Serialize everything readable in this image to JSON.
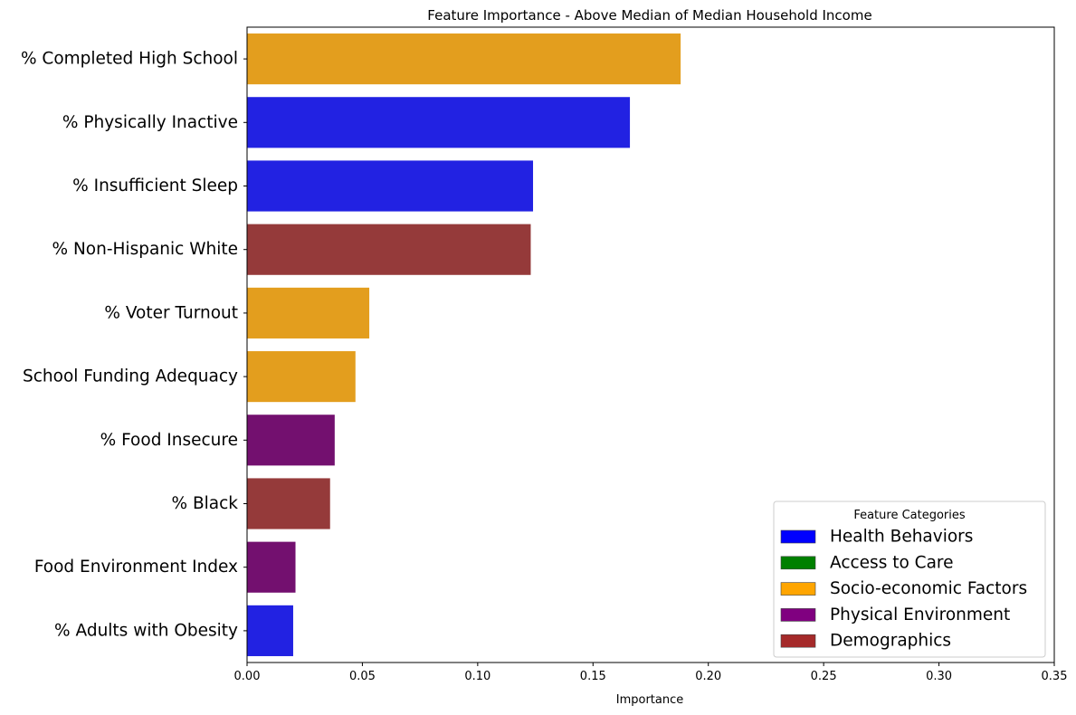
{
  "chart_data": {
    "type": "bar",
    "orientation": "horizontal",
    "title": "Feature Importance -  Above Median of Median Household Income",
    "xlabel": "Importance",
    "ylabel": "",
    "xlim": [
      0,
      0.35
    ],
    "xticks": [
      "0.00",
      "0.05",
      "0.10",
      "0.15",
      "0.20",
      "0.25",
      "0.30",
      "0.35"
    ],
    "grid": false,
    "categories": [
      "% Completed High School",
      "% Physically Inactive",
      "% Insufficient Sleep",
      "% Non-Hispanic White",
      "% Voter Turnout",
      "School Funding Adequacy",
      "% Food Insecure",
      "% Black",
      "Food Environment Index",
      "% Adults with Obesity"
    ],
    "values": [
      0.188,
      0.166,
      0.124,
      0.123,
      0.053,
      0.047,
      0.038,
      0.036,
      0.021,
      0.02
    ],
    "bar_categories": [
      "Socio-economic Factors",
      "Health Behaviors",
      "Health Behaviors",
      "Demographics",
      "Socio-economic Factors",
      "Socio-economic Factors",
      "Physical Environment",
      "Demographics",
      "Physical Environment",
      "Health Behaviors"
    ],
    "legend": {
      "title": "Feature Categories",
      "placement": "lower-right",
      "entries": [
        {
          "label": "Health Behaviors",
          "color": "#0000ff"
        },
        {
          "label": "Access to Care",
          "color": "#008000"
        },
        {
          "label": "Socio-economic Factors",
          "color": "#ffa500"
        },
        {
          "label": "Physical Environment",
          "color": "#800080"
        },
        {
          "label": "Demographics",
          "color": "#a52a2a"
        }
      ]
    },
    "bar_colors": {
      "Health Behaviors": "#2222e2",
      "Access to Care": "#008000",
      "Socio-economic Factors": "#e39e1e",
      "Physical Environment": "#73106f",
      "Demographics": "#953a3a"
    }
  }
}
